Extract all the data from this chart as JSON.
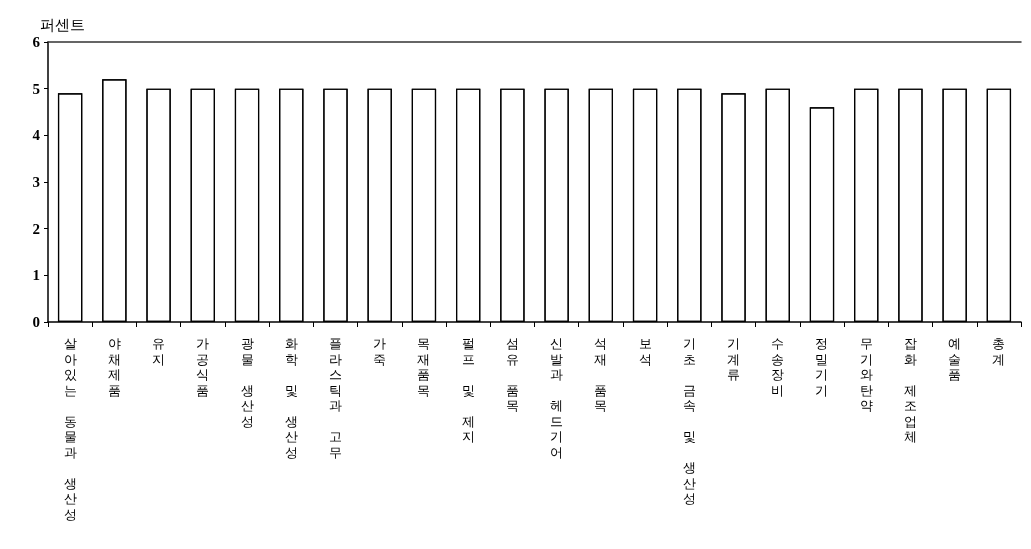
{
  "chart_data": {
    "type": "bar",
    "ylabel": "퍼센트",
    "categories": [
      "살아있는 동물과 생산성",
      "야채제품",
      "유지",
      "가공식품",
      "광물 생산성",
      "화학 및 생산성",
      "플라스틱과 고무",
      "가죽",
      "목재품목",
      "펄프 및 제지",
      "섬유 품목",
      "신발과 헤드기어",
      "석재 품목",
      "보석",
      "기초 금속 및 생산성",
      "기계류",
      "수송장비",
      "정밀기기",
      "무기와탄약",
      "잡화 제조업체",
      "예술품",
      "총계"
    ],
    "values": [
      4.9,
      5.2,
      5,
      5,
      5,
      5,
      5,
      5,
      5,
      5,
      5,
      5,
      5,
      5,
      5,
      4.9,
      5,
      4.6,
      5,
      5,
      5,
      5
    ],
    "color": "#ffffff",
    "ylim": [
      0,
      6
    ],
    "yticks": [
      0,
      1,
      2,
      3,
      4,
      5,
      6
    ],
    "grid": false
  }
}
